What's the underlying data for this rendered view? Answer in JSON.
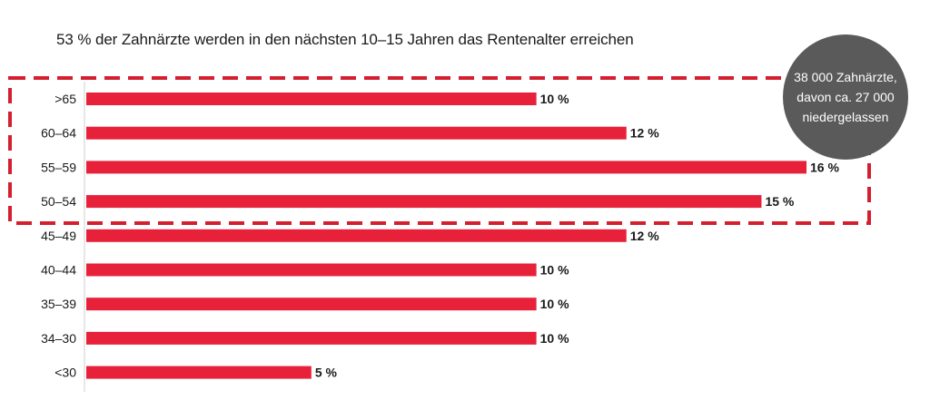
{
  "chart_data": {
    "type": "bar",
    "orientation": "horizontal",
    "title": "53 % der Zahnärzte werden in den nächsten 10–15 Jahren das Rentenalter erreichen",
    "categories": [
      ">65",
      "60–64",
      "55–59",
      "50–54",
      "45–49",
      "40–44",
      "35–39",
      "34–30",
      "<30"
    ],
    "values": [
      10,
      12,
      16,
      15,
      12,
      10,
      10,
      10,
      5
    ],
    "value_labels": [
      "10 %",
      "12 %",
      "16 %",
      "15 %",
      "12 %",
      "10 %",
      "10 %",
      "10 %",
      "5 %"
    ],
    "unit": "%",
    "xlim": [
      0,
      16
    ],
    "bar_color": "#e8213a",
    "highlight": {
      "categories": [
        ">65",
        "60–64",
        "55–59",
        "50–54"
      ],
      "style": "dashed-box",
      "color": "#d4202e"
    },
    "annotation": {
      "lines": [
        "38 000 Zahnärzte,",
        "davon ca. 27 000",
        "niedergelassen"
      ],
      "color": "#5a5a5a"
    }
  }
}
